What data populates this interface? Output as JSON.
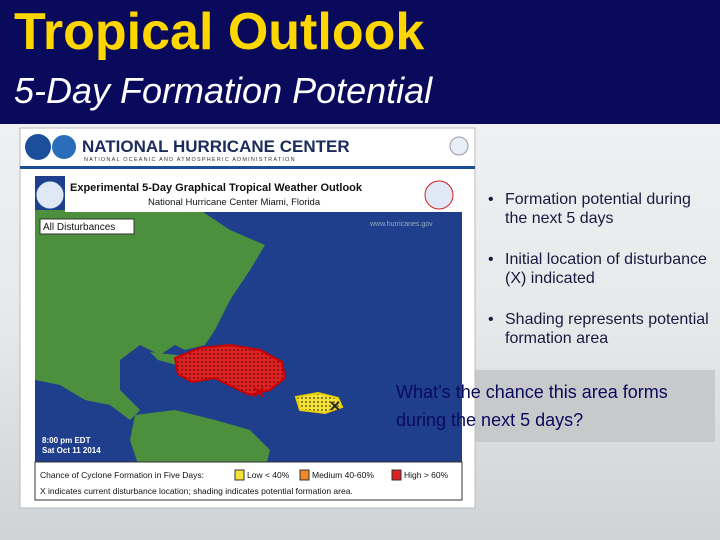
{
  "header": {
    "title": "Tropical Outlook",
    "subtitle": "5-Day Formation Potential"
  },
  "screenshot": {
    "agency": "NATIONAL HURRICANE CENTER",
    "parent": "NATIONAL OCEANIC AND ATMOSPHERIC ADMINISTRATION",
    "map_title": "Experimental 5-Day Graphical Tropical Weather Outlook",
    "map_subtitle": "National Hurricane Center  Miami, Florida",
    "filter": "All Disturbances",
    "website": "www.hurricanes.gov",
    "time": "8:00 pm EDT",
    "date": "Sat Oct 11 2014",
    "legend": {
      "title": "Chance of Cyclone Formation in Five Days:",
      "low": "Low < 40%",
      "medium": "Medium 40-60%",
      "high": "High > 60%",
      "note": "X indicates current disturbance location; shading indicates potential formation area."
    }
  },
  "bullets": [
    "Formation potential during the next 5 days",
    "Initial location of disturbance (X) indicated",
    "Shading represents potential formation area"
  ],
  "callout": "What’s the chance this  area forms during the next 5 days?"
}
